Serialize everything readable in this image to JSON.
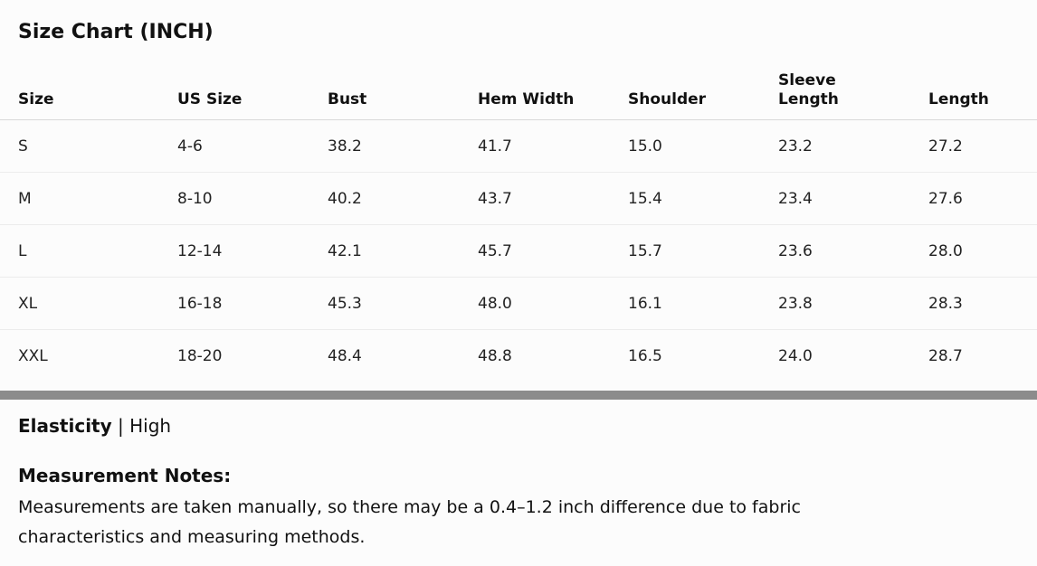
{
  "title": "Size Chart (INCH)",
  "table": {
    "headers": [
      "Size",
      "US Size",
      "Bust",
      "Hem Width",
      "Shoulder",
      "Sleeve Length",
      "Length"
    ],
    "rows": [
      [
        "S",
        "4-6",
        "38.2",
        "41.7",
        "15.0",
        "23.2",
        "27.2"
      ],
      [
        "M",
        "8-10",
        "40.2",
        "43.7",
        "15.4",
        "23.4",
        "27.6"
      ],
      [
        "L",
        "12-14",
        "42.1",
        "45.7",
        "15.7",
        "23.6",
        "28.0"
      ],
      [
        "XL",
        "16-18",
        "45.3",
        "48.0",
        "16.1",
        "23.8",
        "28.3"
      ],
      [
        "XXL",
        "18-20",
        "48.4",
        "48.8",
        "16.5",
        "24.0",
        "28.7"
      ]
    ]
  },
  "elasticity": {
    "label": "Elasticity",
    "separator": " | ",
    "value": "High"
  },
  "notes": {
    "title": "Measurement Notes:",
    "text": "Measurements are taken manually, so there may be a 0.4–1.2 inch difference due to fabric characteristics and measuring methods."
  },
  "colors": {
    "background": "#fcfcfc",
    "divider": "#8c8c8c",
    "text": "#111111"
  }
}
